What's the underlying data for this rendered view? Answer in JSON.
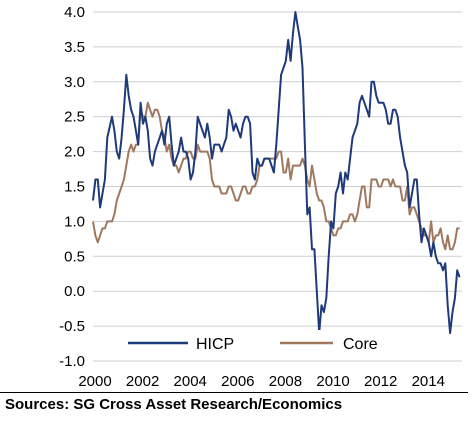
{
  "chart_data": {
    "type": "line",
    "title": "",
    "xlabel": "",
    "ylabel": "",
    "xlim": [
      2000.0,
      2015.5
    ],
    "ylim": [
      -1.0,
      4.0
    ],
    "x_ticks": [
      "2000",
      "2002",
      "2004",
      "2006",
      "2008",
      "2010",
      "2012",
      "2014"
    ],
    "y_ticks": [
      "4.0",
      "3.5",
      "3.0",
      "2.5",
      "2.0",
      "1.5",
      "1.0",
      "0.5",
      "0.0",
      "-0.5",
      "-1.0"
    ],
    "grid": "horizontal",
    "legend_position": "bottom",
    "series": [
      {
        "name": "HICP",
        "color": "#1f3a7a",
        "points": [
          [
            2000.0,
            1.3
          ],
          [
            2000.1,
            1.6
          ],
          [
            2000.2,
            1.6
          ],
          [
            2000.3,
            1.2
          ],
          [
            2000.4,
            1.4
          ],
          [
            2000.5,
            1.6
          ],
          [
            2000.6,
            2.2
          ],
          [
            2000.8,
            2.5
          ],
          [
            2000.9,
            2.3
          ],
          [
            2001.0,
            2.0
          ],
          [
            2001.1,
            1.9
          ],
          [
            2001.2,
            2.2
          ],
          [
            2001.3,
            2.6
          ],
          [
            2001.4,
            3.1
          ],
          [
            2001.5,
            2.8
          ],
          [
            2001.6,
            2.6
          ],
          [
            2001.7,
            2.5
          ],
          [
            2001.8,
            2.3
          ],
          [
            2001.9,
            2.1
          ],
          [
            2002.0,
            2.7
          ],
          [
            2002.1,
            2.4
          ],
          [
            2002.2,
            2.5
          ],
          [
            2002.3,
            2.3
          ],
          [
            2002.4,
            1.9
          ],
          [
            2002.5,
            1.8
          ],
          [
            2002.6,
            2.0
          ],
          [
            2002.7,
            2.1
          ],
          [
            2002.8,
            2.2
          ],
          [
            2002.9,
            2.3
          ],
          [
            2003.0,
            2.1
          ],
          [
            2003.1,
            2.4
          ],
          [
            2003.2,
            2.5
          ],
          [
            2003.3,
            2.1
          ],
          [
            2003.4,
            1.8
          ],
          [
            2003.5,
            1.9
          ],
          [
            2003.6,
            2.0
          ],
          [
            2003.7,
            2.2
          ],
          [
            2003.8,
            2.0
          ],
          [
            2003.9,
            2.0
          ],
          [
            2004.0,
            1.9
          ],
          [
            2004.1,
            1.6
          ],
          [
            2004.2,
            1.7
          ],
          [
            2004.3,
            2.0
          ],
          [
            2004.4,
            2.5
          ],
          [
            2004.5,
            2.4
          ],
          [
            2004.6,
            2.3
          ],
          [
            2004.7,
            2.2
          ],
          [
            2004.8,
            2.4
          ],
          [
            2004.9,
            2.2
          ],
          [
            2005.0,
            1.9
          ],
          [
            2005.1,
            2.1
          ],
          [
            2005.2,
            2.1
          ],
          [
            2005.3,
            2.1
          ],
          [
            2005.4,
            2.0
          ],
          [
            2005.5,
            2.1
          ],
          [
            2005.6,
            2.2
          ],
          [
            2005.7,
            2.6
          ],
          [
            2005.8,
            2.5
          ],
          [
            2005.9,
            2.3
          ],
          [
            2006.0,
            2.4
          ],
          [
            2006.1,
            2.3
          ],
          [
            2006.2,
            2.2
          ],
          [
            2006.3,
            2.4
          ],
          [
            2006.4,
            2.5
          ],
          [
            2006.5,
            2.5
          ],
          [
            2006.6,
            2.4
          ],
          [
            2006.7,
            1.7
          ],
          [
            2006.8,
            1.6
          ],
          [
            2006.9,
            1.9
          ],
          [
            2007.0,
            1.8
          ],
          [
            2007.1,
            1.8
          ],
          [
            2007.2,
            1.9
          ],
          [
            2007.3,
            1.9
          ],
          [
            2007.4,
            1.9
          ],
          [
            2007.5,
            1.8
          ],
          [
            2007.6,
            1.7
          ],
          [
            2007.7,
            2.1
          ],
          [
            2007.8,
            2.6
          ],
          [
            2007.9,
            3.1
          ],
          [
            2008.0,
            3.2
          ],
          [
            2008.1,
            3.3
          ],
          [
            2008.2,
            3.6
          ],
          [
            2008.3,
            3.3
          ],
          [
            2008.4,
            3.7
          ],
          [
            2008.5,
            4.0
          ],
          [
            2008.6,
            3.8
          ],
          [
            2008.7,
            3.6
          ],
          [
            2008.8,
            3.2
          ],
          [
            2008.9,
            2.1
          ],
          [
            2009.0,
            1.1
          ],
          [
            2009.1,
            1.2
          ],
          [
            2009.2,
            0.6
          ],
          [
            2009.3,
            0.6
          ],
          [
            2009.4,
            0.0
          ],
          [
            2009.5,
            -0.6
          ],
          [
            2009.6,
            -0.2
          ],
          [
            2009.7,
            -0.3
          ],
          [
            2009.8,
            -0.1
          ],
          [
            2009.9,
            0.5
          ],
          [
            2010.0,
            1.0
          ],
          [
            2010.1,
            0.9
          ],
          [
            2010.2,
            1.4
          ],
          [
            2010.3,
            1.5
          ],
          [
            2010.4,
            1.7
          ],
          [
            2010.5,
            1.4
          ],
          [
            2010.6,
            1.7
          ],
          [
            2010.7,
            1.6
          ],
          [
            2010.8,
            1.9
          ],
          [
            2010.9,
            2.2
          ],
          [
            2011.0,
            2.3
          ],
          [
            2011.1,
            2.4
          ],
          [
            2011.2,
            2.7
          ],
          [
            2011.3,
            2.8
          ],
          [
            2011.4,
            2.7
          ],
          [
            2011.5,
            2.6
          ],
          [
            2011.6,
            2.5
          ],
          [
            2011.7,
            3.0
          ],
          [
            2011.8,
            3.0
          ],
          [
            2011.9,
            2.8
          ],
          [
            2012.0,
            2.7
          ],
          [
            2012.1,
            2.7
          ],
          [
            2012.2,
            2.7
          ],
          [
            2012.3,
            2.6
          ],
          [
            2012.4,
            2.4
          ],
          [
            2012.5,
            2.4
          ],
          [
            2012.6,
            2.6
          ],
          [
            2012.7,
            2.6
          ],
          [
            2012.8,
            2.5
          ],
          [
            2012.9,
            2.2
          ],
          [
            2013.0,
            2.0
          ],
          [
            2013.1,
            1.8
          ],
          [
            2013.2,
            1.7
          ],
          [
            2013.3,
            1.2
          ],
          [
            2013.4,
            1.4
          ],
          [
            2013.5,
            1.6
          ],
          [
            2013.6,
            1.6
          ],
          [
            2013.7,
            1.1
          ],
          [
            2013.8,
            0.7
          ],
          [
            2013.9,
            0.9
          ],
          [
            2014.0,
            0.8
          ],
          [
            2014.1,
            0.7
          ],
          [
            2014.2,
            0.5
          ],
          [
            2014.3,
            0.7
          ],
          [
            2014.4,
            0.5
          ],
          [
            2014.5,
            0.4
          ],
          [
            2014.6,
            0.4
          ],
          [
            2014.7,
            0.3
          ],
          [
            2014.8,
            0.4
          ],
          [
            2014.9,
            -0.2
          ],
          [
            2015.0,
            -0.6
          ],
          [
            2015.1,
            -0.3
          ],
          [
            2015.2,
            -0.1
          ],
          [
            2015.3,
            0.3
          ],
          [
            2015.4,
            0.2
          ]
        ]
      },
      {
        "name": "Core",
        "color": "#a07860",
        "points": [
          [
            2000.0,
            1.0
          ],
          [
            2000.1,
            0.8
          ],
          [
            2000.2,
            0.7
          ],
          [
            2000.3,
            0.8
          ],
          [
            2000.4,
            0.9
          ],
          [
            2000.5,
            0.9
          ],
          [
            2000.6,
            1.0
          ],
          [
            2000.8,
            1.0
          ],
          [
            2000.9,
            1.1
          ],
          [
            2001.0,
            1.3
          ],
          [
            2001.1,
            1.4
          ],
          [
            2001.2,
            1.5
          ],
          [
            2001.3,
            1.6
          ],
          [
            2001.4,
            1.8
          ],
          [
            2001.5,
            2.0
          ],
          [
            2001.6,
            2.1
          ],
          [
            2001.7,
            2.0
          ],
          [
            2001.8,
            2.1
          ],
          [
            2001.9,
            2.1
          ],
          [
            2002.0,
            2.6
          ],
          [
            2002.1,
            2.5
          ],
          [
            2002.2,
            2.5
          ],
          [
            2002.3,
            2.7
          ],
          [
            2002.4,
            2.6
          ],
          [
            2002.5,
            2.5
          ],
          [
            2002.6,
            2.6
          ],
          [
            2002.7,
            2.6
          ],
          [
            2002.8,
            2.5
          ],
          [
            2002.9,
            2.3
          ],
          [
            2003.0,
            2.2
          ],
          [
            2003.1,
            2.0
          ],
          [
            2003.2,
            2.1
          ],
          [
            2003.3,
            1.9
          ],
          [
            2003.4,
            1.8
          ],
          [
            2003.5,
            1.8
          ],
          [
            2003.6,
            1.7
          ],
          [
            2003.7,
            1.8
          ],
          [
            2003.8,
            1.9
          ],
          [
            2003.9,
            1.9
          ],
          [
            2004.0,
            2.0
          ],
          [
            2004.1,
            2.0
          ],
          [
            2004.2,
            1.9
          ],
          [
            2004.3,
            1.9
          ],
          [
            2004.4,
            2.1
          ],
          [
            2004.5,
            2.0
          ],
          [
            2004.6,
            2.0
          ],
          [
            2004.7,
            2.0
          ],
          [
            2004.8,
            2.0
          ],
          [
            2004.9,
            1.9
          ],
          [
            2005.0,
            1.6
          ],
          [
            2005.1,
            1.5
          ],
          [
            2005.2,
            1.5
          ],
          [
            2005.3,
            1.5
          ],
          [
            2005.4,
            1.4
          ],
          [
            2005.5,
            1.4
          ],
          [
            2005.6,
            1.4
          ],
          [
            2005.7,
            1.5
          ],
          [
            2005.8,
            1.5
          ],
          [
            2005.9,
            1.4
          ],
          [
            2006.0,
            1.3
          ],
          [
            2006.1,
            1.3
          ],
          [
            2006.2,
            1.4
          ],
          [
            2006.3,
            1.5
          ],
          [
            2006.4,
            1.5
          ],
          [
            2006.5,
            1.4
          ],
          [
            2006.6,
            1.4
          ],
          [
            2006.7,
            1.5
          ],
          [
            2006.8,
            1.5
          ],
          [
            2006.9,
            1.6
          ],
          [
            2007.0,
            1.8
          ],
          [
            2007.1,
            1.8
          ],
          [
            2007.2,
            1.9
          ],
          [
            2007.3,
            1.9
          ],
          [
            2007.4,
            1.9
          ],
          [
            2007.5,
            1.9
          ],
          [
            2007.6,
            1.9
          ],
          [
            2007.7,
            1.9
          ],
          [
            2007.8,
            2.0
          ],
          [
            2007.9,
            2.0
          ],
          [
            2008.0,
            1.7
          ],
          [
            2008.1,
            1.7
          ],
          [
            2008.2,
            1.9
          ],
          [
            2008.3,
            1.6
          ],
          [
            2008.4,
            1.8
          ],
          [
            2008.5,
            1.8
          ],
          [
            2008.6,
            1.8
          ],
          [
            2008.7,
            1.8
          ],
          [
            2008.8,
            1.9
          ],
          [
            2008.9,
            1.8
          ],
          [
            2009.0,
            1.6
          ],
          [
            2009.1,
            1.5
          ],
          [
            2009.2,
            1.8
          ],
          [
            2009.3,
            1.6
          ],
          [
            2009.4,
            1.4
          ],
          [
            2009.5,
            1.3
          ],
          [
            2009.6,
            1.3
          ],
          [
            2009.7,
            1.2
          ],
          [
            2009.8,
            1.0
          ],
          [
            2009.9,
            1.0
          ],
          [
            2010.0,
            0.9
          ],
          [
            2010.1,
            0.8
          ],
          [
            2010.2,
            0.8
          ],
          [
            2010.3,
            0.9
          ],
          [
            2010.4,
            0.9
          ],
          [
            2010.5,
            1.0
          ],
          [
            2010.6,
            1.0
          ],
          [
            2010.7,
            1.0
          ],
          [
            2010.8,
            1.1
          ],
          [
            2010.9,
            1.1
          ],
          [
            2011.0,
            1.0
          ],
          [
            2011.1,
            1.1
          ],
          [
            2011.2,
            1.3
          ],
          [
            2011.3,
            1.5
          ],
          [
            2011.4,
            1.5
          ],
          [
            2011.5,
            1.2
          ],
          [
            2011.6,
            1.2
          ],
          [
            2011.7,
            1.6
          ],
          [
            2011.8,
            1.6
          ],
          [
            2011.9,
            1.6
          ],
          [
            2012.0,
            1.5
          ],
          [
            2012.1,
            1.5
          ],
          [
            2012.2,
            1.6
          ],
          [
            2012.3,
            1.6
          ],
          [
            2012.4,
            1.6
          ],
          [
            2012.5,
            1.5
          ],
          [
            2012.6,
            1.6
          ],
          [
            2012.7,
            1.5
          ],
          [
            2012.8,
            1.5
          ],
          [
            2012.9,
            1.5
          ],
          [
            2013.0,
            1.3
          ],
          [
            2013.1,
            1.3
          ],
          [
            2013.2,
            1.5
          ],
          [
            2013.3,
            1.1
          ],
          [
            2013.4,
            1.2
          ],
          [
            2013.5,
            1.2
          ],
          [
            2013.6,
            1.1
          ],
          [
            2013.7,
            1.0
          ],
          [
            2013.8,
            0.9
          ],
          [
            2013.9,
            0.8
          ],
          [
            2014.0,
            0.8
          ],
          [
            2014.1,
            0.7
          ],
          [
            2014.2,
            1.0
          ],
          [
            2014.3,
            0.7
          ],
          [
            2014.4,
            0.8
          ],
          [
            2014.5,
            0.8
          ],
          [
            2014.6,
            0.9
          ],
          [
            2014.7,
            0.7
          ],
          [
            2014.8,
            0.6
          ],
          [
            2014.9,
            0.8
          ],
          [
            2015.0,
            0.6
          ],
          [
            2015.1,
            0.6
          ],
          [
            2015.2,
            0.7
          ],
          [
            2015.3,
            0.9
          ],
          [
            2015.4,
            0.9
          ]
        ]
      }
    ]
  },
  "source": "Sources: SG Cross Asset Research/Economics"
}
